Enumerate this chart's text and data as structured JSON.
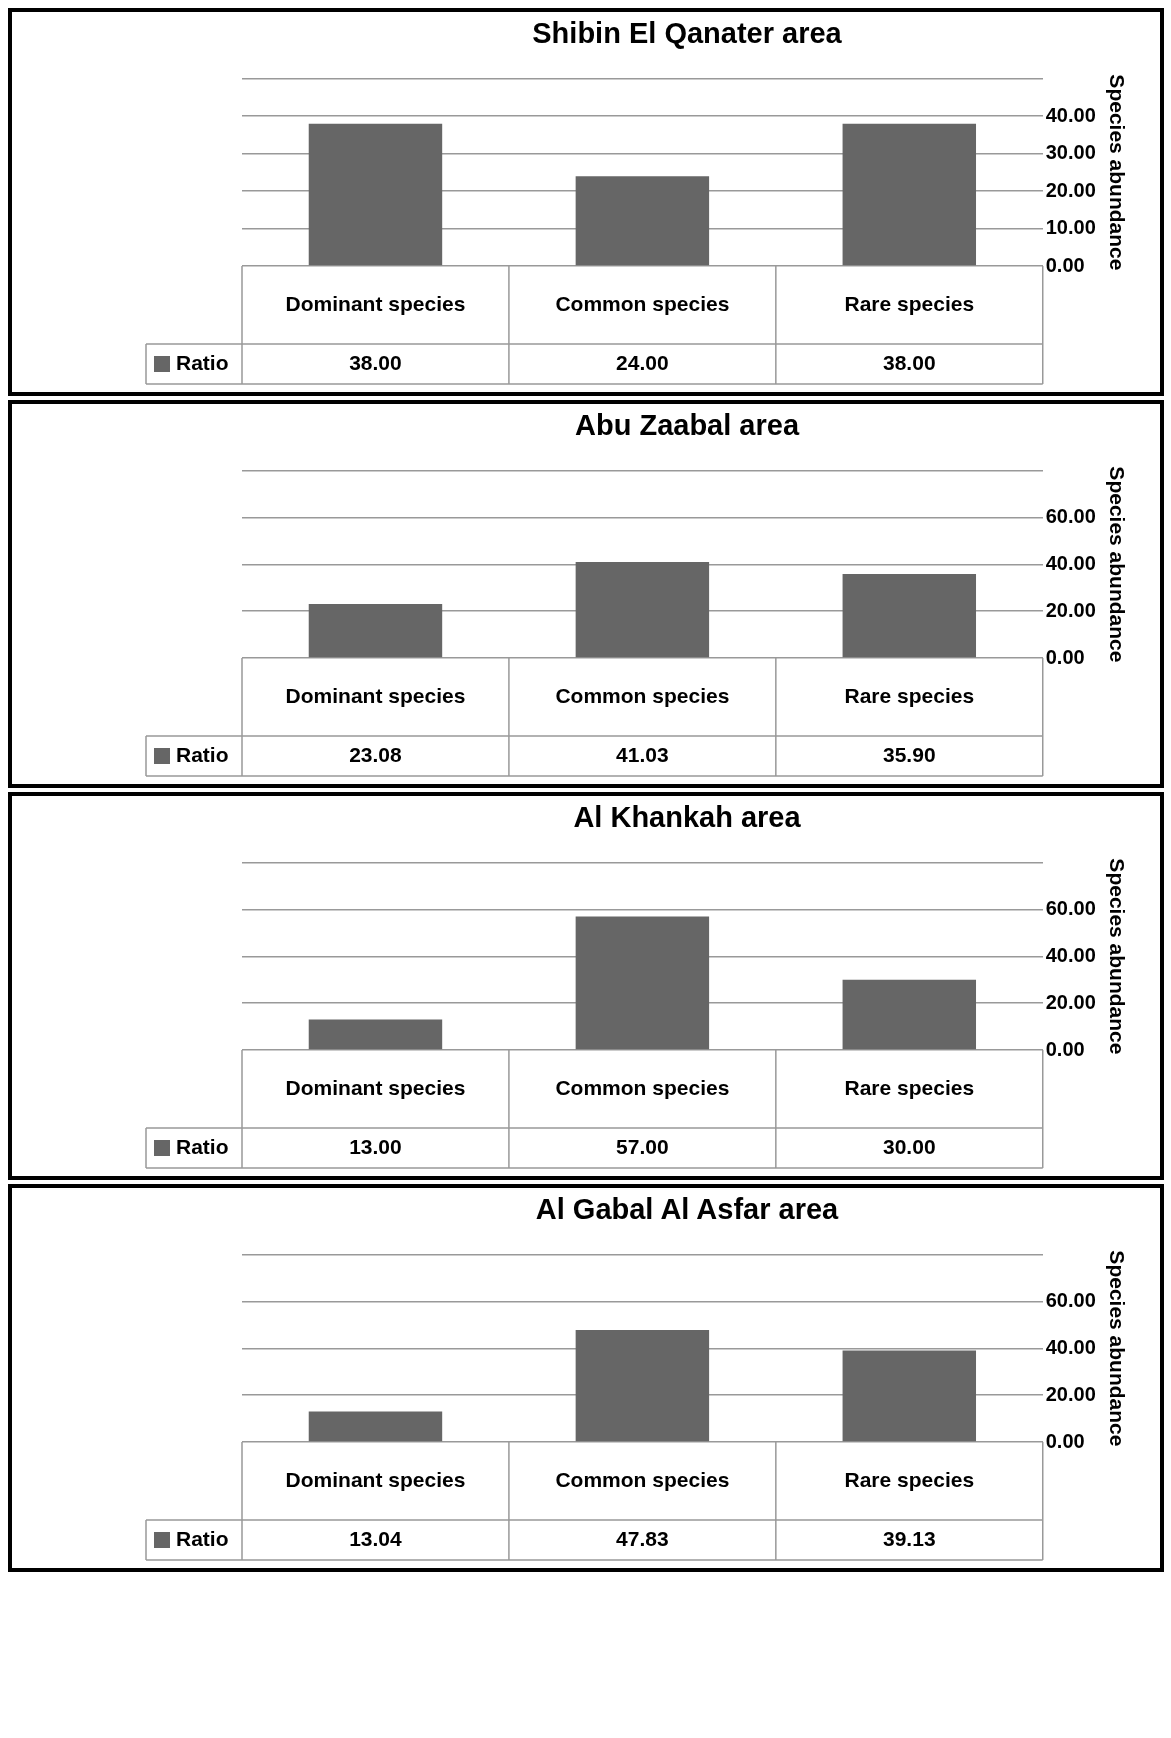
{
  "chart_data": [
    {
      "type": "bar",
      "title": "Shibin El Qanater area",
      "ylabel": "Species abundance",
      "categories": [
        "Dominant species",
        "Common species",
        "Rare species"
      ],
      "series": [
        {
          "name": "Ratio",
          "color": "#666666",
          "values": [
            38,
            24,
            38
          ],
          "value_labels": [
            "38.00",
            "24.00",
            "38.00"
          ]
        }
      ],
      "ylim": [
        0,
        50
      ],
      "yticks": [
        {
          "value": 0,
          "label": "0.00"
        },
        {
          "value": 10,
          "label": "10.00"
        },
        {
          "value": 20,
          "label": "20.00"
        },
        {
          "value": 30,
          "label": "30.00"
        },
        {
          "value": 40,
          "label": "40.00"
        },
        {
          "value": 50,
          "label": null
        }
      ],
      "grid": "y"
    },
    {
      "type": "bar",
      "title": "Abu Zaabal area",
      "ylabel": "Species abundance",
      "categories": [
        "Dominant species",
        "Common species",
        "Rare species"
      ],
      "series": [
        {
          "name": "Ratio",
          "color": "#666666",
          "values": [
            23.08,
            41.03,
            35.9
          ],
          "value_labels": [
            "23.08",
            "41.03",
            "35.90"
          ]
        }
      ],
      "ylim": [
        0,
        80
      ],
      "yticks": [
        {
          "value": 0,
          "label": "0.00"
        },
        {
          "value": 20,
          "label": "20.00"
        },
        {
          "value": 40,
          "label": "40.00"
        },
        {
          "value": 60,
          "label": "60.00"
        },
        {
          "value": 80,
          "label": null
        }
      ],
      "grid": "y"
    },
    {
      "type": "bar",
      "title": "Al Khankah area",
      "ylabel": "Species abundance",
      "categories": [
        "Dominant species",
        "Common species",
        "Rare species"
      ],
      "series": [
        {
          "name": "Ratio",
          "color": "#666666",
          "values": [
            13,
            57,
            30
          ],
          "value_labels": [
            "13.00",
            "57.00",
            "30.00"
          ]
        }
      ],
      "ylim": [
        0,
        80
      ],
      "yticks": [
        {
          "value": 0,
          "label": "0.00"
        },
        {
          "value": 20,
          "label": "20.00"
        },
        {
          "value": 40,
          "label": "40.00"
        },
        {
          "value": 60,
          "label": "60.00"
        },
        {
          "value": 80,
          "label": null
        }
      ],
      "grid": "y"
    },
    {
      "type": "bar",
      "title": "Al Gabal Al Asfar area",
      "ylabel": "Species abundance",
      "categories": [
        "Dominant species",
        "Common species",
        "Rare species"
      ],
      "series": [
        {
          "name": "Ratio",
          "color": "#666666",
          "values": [
            13.04,
            47.83,
            39.13
          ],
          "value_labels": [
            "13.04",
            "47.83",
            "39.13"
          ]
        }
      ],
      "ylim": [
        0,
        80
      ],
      "yticks": [
        {
          "value": 0,
          "label": "0.00"
        },
        {
          "value": 20,
          "label": "20.00"
        },
        {
          "value": 40,
          "label": "40.00"
        },
        {
          "value": 60,
          "label": "60.00"
        },
        {
          "value": 80,
          "label": null
        }
      ],
      "grid": "y"
    }
  ]
}
